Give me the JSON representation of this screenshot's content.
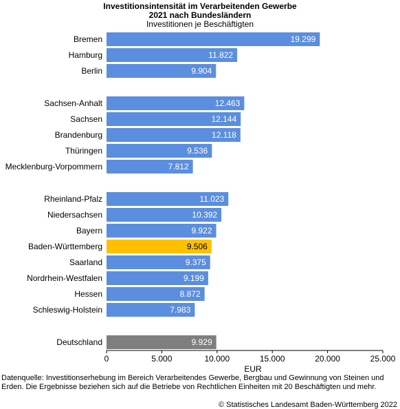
{
  "header": {
    "title_line1": "Investitionsintensität im Verarbeitenden Gewerbe",
    "title_line2": "2021 nach Bundesländern",
    "subtitle": "Investitionen je Beschäftigten"
  },
  "footer": {
    "source": "Datenquelle: Investitionserhebung im Bereich Verarbeitendes Gewerbe, Bergbau und Gewinnung von Steinen und Erden. Die Ergebnisse beziehen sich auf die Betriebe von Rechtlichen Einheiten mit 20 Beschäftigten und mehr.",
    "copyright": "© Statistisches Landesamt Baden-Württemberg 2022"
  },
  "chart_data": {
    "type": "bar",
    "orientation": "horizontal",
    "title": "Investitionsintensität im Verarbeitenden Gewerbe 2021 nach Bundesländern",
    "subtitle": "Investitionen je Beschäftigten",
    "xlabel": "EUR",
    "ylabel": "",
    "xlim": [
      0,
      25000
    ],
    "x_ticks": [
      0,
      5000,
      10000,
      15000,
      20000,
      25000
    ],
    "x_tick_labels": [
      "0",
      "5.000",
      "10.000",
      "15.000",
      "20.000",
      "25.000"
    ],
    "grid": false,
    "legend": "none",
    "groups": [
      [
        {
          "name": "Bremen",
          "value": 19299,
          "label": "19.299"
        },
        {
          "name": "Hamburg",
          "value": 11822,
          "label": "11.822"
        },
        {
          "name": "Berlin",
          "value": 9904,
          "label": "9.904"
        }
      ],
      [
        {
          "name": "Sachsen-Anhalt",
          "value": 12463,
          "label": "12.463"
        },
        {
          "name": "Sachsen",
          "value": 12144,
          "label": "12.144"
        },
        {
          "name": "Brandenburg",
          "value": 12118,
          "label": "12.118"
        },
        {
          "name": "Thüringen",
          "value": 9536,
          "label": "9.536"
        },
        {
          "name": "Mecklenburg-Vorpommern",
          "value": 7812,
          "label": "7.812"
        }
      ],
      [
        {
          "name": "Rheinland-Pfalz",
          "value": 11023,
          "label": "11.023"
        },
        {
          "name": "Niedersachsen",
          "value": 10392,
          "label": "10.392"
        },
        {
          "name": "Bayern",
          "value": 9922,
          "label": "9.922"
        },
        {
          "name": "Baden-Württemberg",
          "value": 9506,
          "label": "9.506",
          "highlight": true
        },
        {
          "name": "Saarland",
          "value": 9375,
          "label": "9.375"
        },
        {
          "name": "Nordrhein-Westfalen",
          "value": 9199,
          "label": "9.199"
        },
        {
          "name": "Hessen",
          "value": 8872,
          "label": "8.872"
        },
        {
          "name": "Schleswig-Holstein",
          "value": 7983,
          "label": "7.983"
        }
      ],
      [
        {
          "name": "Deutschland",
          "value": 9929,
          "label": "9.929",
          "total": true
        }
      ]
    ],
    "colors": {
      "default": "#5b8ede",
      "highlight": "#ffc000",
      "total": "#7f7f7f",
      "axis": "#000000",
      "value_label_light": "#ffffff",
      "value_label_dark": "#000000"
    }
  }
}
